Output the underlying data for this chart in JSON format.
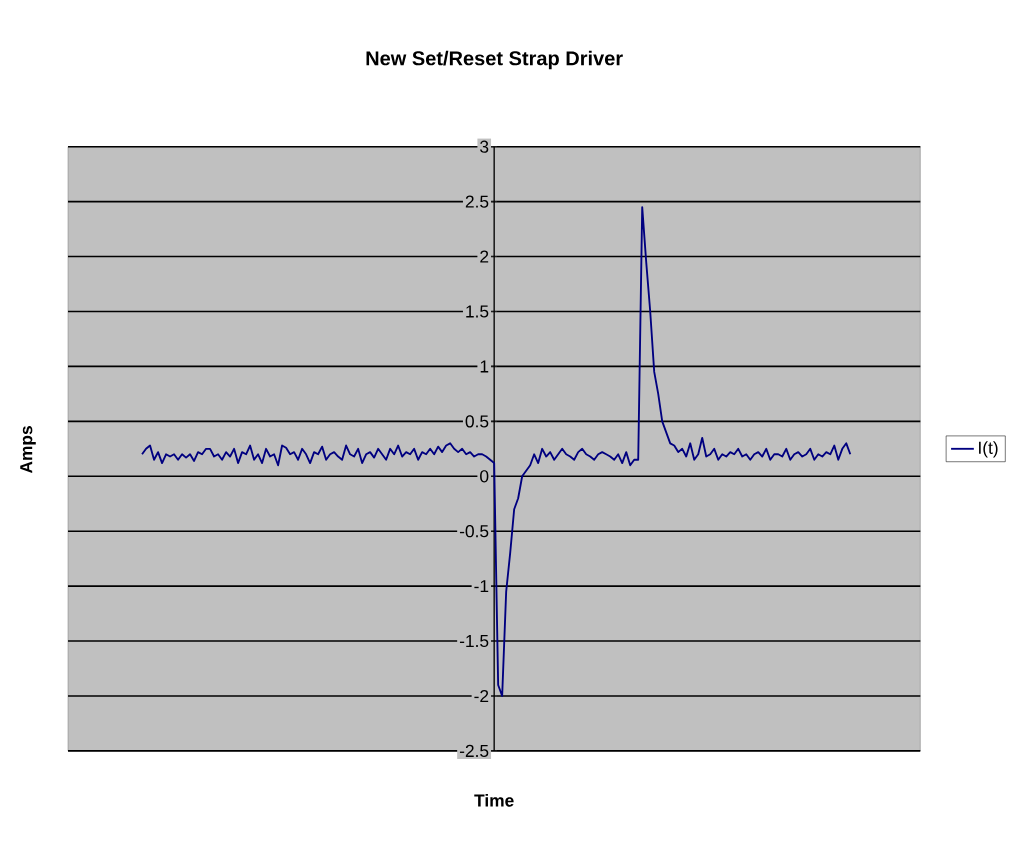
{
  "chart_data": {
    "type": "line",
    "title": "New Set/Reset Strap Driver",
    "xlabel": "Time",
    "ylabel": "Amps",
    "categories": [
      null,
      null,
      null,
      null,
      null,
      null,
      null,
      null,
      null,
      null,
      null,
      null,
      null,
      null,
      null,
      null,
      null,
      null,
      null,
      null,
      null,
      null,
      null,
      null,
      null,
      null,
      null,
      null,
      null,
      null,
      null,
      null,
      null,
      null,
      null,
      null,
      null,
      null,
      null,
      null,
      null,
      null,
      null,
      null,
      null,
      null,
      null,
      null,
      null,
      null,
      null,
      null,
      null,
      null,
      null,
      null,
      null,
      null,
      null,
      null,
      null,
      null,
      null,
      null,
      null,
      null,
      null,
      null,
      null,
      null,
      null,
      null,
      null,
      null,
      null,
      null,
      null,
      null,
      null,
      null,
      null,
      null,
      null,
      null,
      null,
      null,
      null,
      null,
      null,
      null,
      null,
      null,
      null,
      null,
      null,
      null,
      null,
      null,
      null,
      null,
      null,
      null,
      null,
      null,
      null,
      null,
      null,
      null,
      null,
      null,
      null,
      null,
      null,
      null,
      null,
      null,
      null,
      null,
      null,
      null,
      null,
      null,
      null,
      null,
      null,
      null,
      null,
      null,
      null,
      null,
      null,
      null,
      null,
      null,
      null,
      null,
      null,
      null,
      null,
      null,
      null,
      null,
      null,
      null,
      null,
      null,
      null,
      null,
      null,
      null,
      null,
      null,
      null,
      null,
      null,
      null,
      null,
      null,
      null,
      null,
      null,
      null,
      null,
      null,
      null,
      null,
      null,
      null,
      null,
      null,
      null,
      null,
      null,
      null,
      null,
      null,
      null,
      null,
      null,
      null,
      null,
      null,
      null,
      null,
      null,
      null,
      null,
      null,
      null,
      null,
      null,
      null,
      null,
      null,
      null,
      null,
      null,
      null,
      null,
      null,
      null,
      null,
      null,
      null,
      null,
      null,
      null,
      null,
      null,
      null,
      null,
      null,
      null
    ],
    "series": [
      {
        "name": "I(t)",
        "color": "#000080",
        "values": [
          null,
          null,
          null,
          null,
          null,
          null,
          null,
          null,
          null,
          null,
          null,
          null,
          null,
          null,
          null,
          null,
          null,
          null,
          0.2,
          0.25,
          0.28,
          0.15,
          0.22,
          0.12,
          0.2,
          0.18,
          0.2,
          0.15,
          0.2,
          0.17,
          0.2,
          0.14,
          0.22,
          0.2,
          0.25,
          0.25,
          0.18,
          0.2,
          0.15,
          0.22,
          0.18,
          0.25,
          0.12,
          0.22,
          0.2,
          0.28,
          0.15,
          0.2,
          0.12,
          0.25,
          0.18,
          0.2,
          0.1,
          0.28,
          0.26,
          0.2,
          0.22,
          0.15,
          0.25,
          0.2,
          0.12,
          0.22,
          0.2,
          0.27,
          0.15,
          0.2,
          0.22,
          0.18,
          0.15,
          0.28,
          0.2,
          0.18,
          0.25,
          0.12,
          0.2,
          0.22,
          0.17,
          0.25,
          0.2,
          0.15,
          0.25,
          0.2,
          0.28,
          0.18,
          0.22,
          0.2,
          0.25,
          0.15,
          0.22,
          0.2,
          0.25,
          0.2,
          0.27,
          0.22,
          0.28,
          0.3,
          0.25,
          0.22,
          0.25,
          0.2,
          0.22,
          0.18,
          0.2,
          0.2,
          0.18,
          0.15,
          0.12,
          -1.9,
          -2,
          -1.05,
          -0.7,
          -0.3,
          -0.2,
          0,
          0.05,
          0.1,
          0.2,
          0.12,
          0.25,
          0.18,
          0.22,
          0.15,
          0.2,
          0.25,
          0.2,
          0.18,
          0.15,
          0.22,
          0.25,
          0.2,
          0.18,
          0.15,
          0.2,
          0.22,
          0.2,
          0.18,
          0.15,
          0.2,
          0.12,
          0.22,
          0.1,
          0.15,
          0.15,
          2.45,
          1.95,
          1.5,
          0.95,
          0.75,
          0.5,
          0.4,
          0.3,
          0.28,
          0.22,
          0.25,
          0.18,
          0.3,
          0.15,
          0.2,
          0.35,
          0.18,
          0.2,
          0.25,
          0.15,
          0.2,
          0.18,
          0.22,
          0.2,
          0.25,
          0.18,
          0.2,
          0.15,
          0.2,
          0.22,
          0.18,
          0.25,
          0.15,
          0.2,
          0.2,
          0.18,
          0.25,
          0.15,
          0.2,
          0.22,
          0.18,
          0.2,
          0.25,
          0.15,
          0.2,
          0.18,
          0.22,
          0.2,
          0.28,
          0.15,
          0.25,
          0.3,
          0.2,
          null,
          null,
          null,
          null,
          null,
          null,
          null,
          null,
          null,
          null,
          null,
          null,
          null,
          null,
          null,
          null,
          null
        ]
      }
    ],
    "ylim": [
      -2.5,
      3
    ],
    "yticks": [
      -2.5,
      -2,
      -1.5,
      -1,
      -0.5,
      0,
      0.5,
      1,
      1.5,
      2,
      2.5,
      3
    ],
    "grid": "y",
    "legend": "right"
  }
}
